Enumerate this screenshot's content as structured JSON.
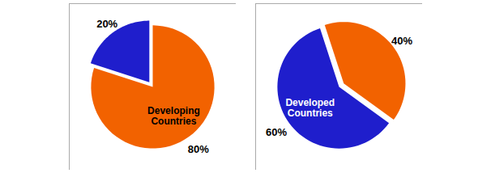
{
  "chart_data": [
    {
      "type": "pie",
      "categories": [
        null,
        "Developing\nCountries"
      ],
      "values": [
        20,
        80
      ],
      "value_labels": [
        "20%",
        "80%"
      ],
      "colors": [
        "#1F1ECC",
        "#F26200"
      ],
      "data_labels": true
    },
    {
      "type": "pie",
      "categories": [
        "Developed\nCountries",
        null
      ],
      "values": [
        60,
        40
      ],
      "value_labels": [
        "60%",
        "40%"
      ],
      "colors": [
        "#1F1ECC",
        "#F26200"
      ],
      "data_labels": true
    }
  ]
}
